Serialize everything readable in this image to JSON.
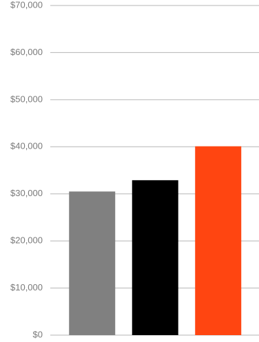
{
  "chart_data": {
    "type": "bar",
    "categories": [
      null,
      null,
      null
    ],
    "values": [
      30500,
      32900,
      40100
    ],
    "colors": [
      "#808080",
      "#000000",
      "#ff4511"
    ],
    "ylim": [
      0,
      70000
    ],
    "yticks": [
      {
        "value": 0,
        "label": "$0"
      },
      {
        "value": 10000,
        "label": "$10,000"
      },
      {
        "value": 20000,
        "label": "$20,000"
      },
      {
        "value": 30000,
        "label": "$30,000"
      },
      {
        "value": 40000,
        "label": "$40,000"
      },
      {
        "value": 50000,
        "label": "$50,000"
      },
      {
        "value": 60000,
        "label": "$60,000"
      },
      {
        "value": 70000,
        "label": "$70,000"
      }
    ],
    "grid": true
  }
}
